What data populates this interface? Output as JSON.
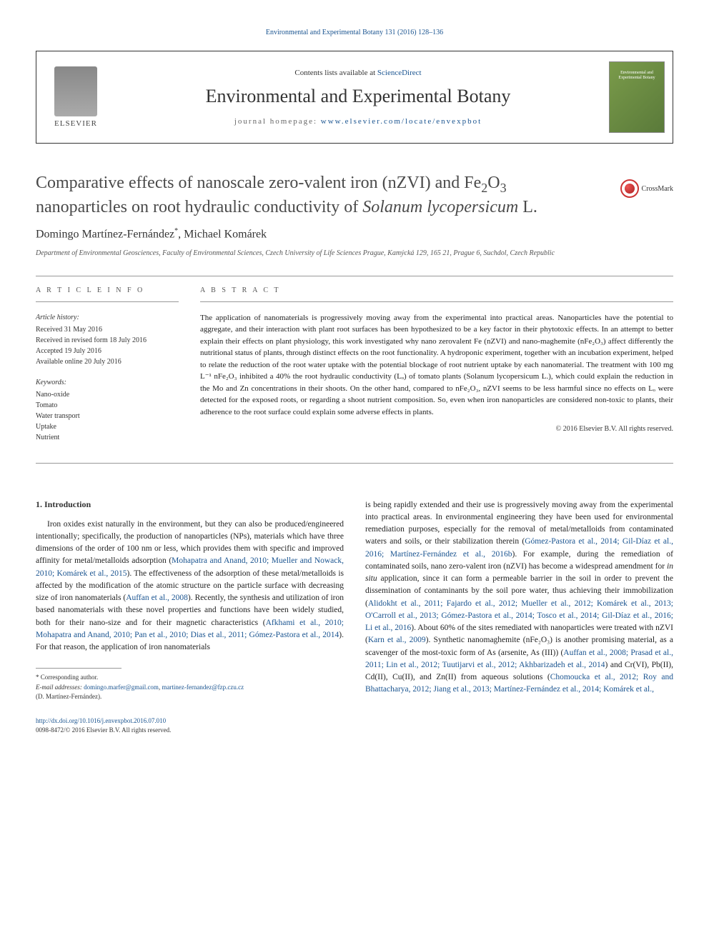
{
  "top_link": {
    "journal": "Environmental and Experimental Botany",
    "citation": "131 (2016) 128–136"
  },
  "header": {
    "contents_prefix": "Contents lists available at ",
    "contents_link": "ScienceDirect",
    "journal_title": "Environmental and Experimental Botany",
    "homepage_prefix": "journal homepage: ",
    "homepage_url": "www.elsevier.com/locate/envexpbot",
    "elsevier_label": "ELSEVIER",
    "cover_text": "Environmental and Experimental Botany"
  },
  "crossmark_label": "CrossMark",
  "article": {
    "title_pre": "Comparative effects of nanoscale zero-valent iron (nZVI) and Fe",
    "title_sub1": "2",
    "title_mid1": "O",
    "title_sub2": "3",
    "title_post": " nanoparticles on root hydraulic conductivity of ",
    "title_species": "Solanum lycopersicum",
    "title_end": " L.",
    "authors": "Domingo Martínez-Fernández",
    "author_mark": "*",
    "author2": ", Michael Komárek",
    "affiliation": "Department of Environmental Geosciences, Faculty of Environmental Sciences, Czech University of Life Sciences Prague, Kamýcká 129, 165 21, Prague 6, Suchdol, Czech Republic"
  },
  "article_info": {
    "heading": "A R T I C L E   I N F O",
    "history_label": "Article history:",
    "history": "Received 31 May 2016\nReceived in revised form 18 July 2016\nAccepted 19 July 2016\nAvailable online 20 July 2016",
    "keywords_label": "Keywords:",
    "keywords": "Nano-oxide\nTomato\nWater transport\nUptake\nNutrient"
  },
  "abstract": {
    "heading": "A B S T R A C T",
    "text": "The application of nanomaterials is progressively moving away from the experimental into practical areas. Nanoparticles have the potential to aggregate, and their interaction with plant root surfaces has been hypothesized to be a key factor in their phytotoxic effects. In an attempt to better explain their effects on plant physiology, this work investigated why nano zerovalent Fe (nZVI) and nano-maghemite (nFe₂O₃) affect differently the nutritional status of plants, through distinct effects on the root functionality. A hydroponic experiment, together with an incubation experiment, helped to relate the reduction of the root water uptake with the potential blockage of root nutrient uptake by each nanomaterial. The treatment with 100 mg L⁻¹ nFe₂O₃ inhibited a 40% the root hydraulic conductivity (Lₒ) of tomato plants (Solanum lycopersicum L.), which could explain the reduction in the Mo and Zn concentrations in their shoots. On the other hand, compared to nFe₂O₃, nZVI seems to be less harmful since no effects on Lₒ were detected for the exposed roots, or regarding a shoot nutrient composition. So, even when iron nanoparticles are considered non-toxic to plants, their adherence to the root surface could explain some adverse effects in plants.",
    "copyright": "© 2016 Elsevier B.V. All rights reserved."
  },
  "body": {
    "section_heading": "1. Introduction",
    "col1_p1": "Iron oxides exist naturally in the environment, but they can also be produced/engineered intentionally; specifically, the production of nanoparticles (NPs), materials which have three dimensions of the order of 100 nm or less, which provides them with specific and improved affinity for metal/metalloids adsorption (",
    "col1_ref1": "Mohapatra and Anand, 2010; Mueller and Nowack, 2010; Komárek et al., 2015",
    "col1_p2": "). The effectiveness of the adsorption of these metal/metalloids is affected by the modification of the atomic structure on the particle surface with decreasing size of iron nanomaterials (",
    "col1_ref2": "Auffan et al., 2008",
    "col1_p3": "). Recently, the synthesis and utilization of iron based nanomaterials with these novel properties and functions have been widely studied, both for their nano-size and for their magnetic characteristics (",
    "col1_ref3": "Afkhami et al., 2010; Mohapatra and Anand, 2010; Pan et al., 2010; Dias et al., 2011; Gómez-Pastora et al., 2014",
    "col1_p4": "). For that reason, the application of iron nanomaterials",
    "col2_p1": "is being rapidly extended and their use is progressively moving away from the experimental into practical areas. In environmental engineering they have been used for environmental remediation purposes, especially for the removal of metal/metalloids from contaminated waters and soils, or their stabilization therein (",
    "col2_ref1": "Gómez-Pastora et al., 2014; Gil-Díaz et al., 2016; Martínez-Fernández et al., 2016b",
    "col2_p2": "). For example, during the remediation of contaminated soils, nano zero-valent iron (nZVI) has become a widespread amendment for ",
    "col2_em1": "in situ",
    "col2_p3": " application, since it can form a permeable barrier in the soil in order to prevent the dissemination of contaminants by the soil pore water, thus achieving their immobilization (",
    "col2_ref2": "Alidokht et al., 2011; Fajardo et al., 2012; Mueller et al., 2012; Komárek et al., 2013; O'Carroll et al., 2013; Gómez-Pastora et al., 2014; Tosco et al., 2014; Gil-Díaz et al., 2016; Li et al., 2016",
    "col2_p4": "). About 60% of the sites remediated with nanoparticles were treated with nZVI (",
    "col2_ref3": "Karn et al., 2009",
    "col2_p5": "). Synthetic nanomaghemite (nFe₂O₃) is another promising material, as a scavenger of the most-toxic form of As (arsenite, As (III)) (",
    "col2_ref4": "Auffan et al., 2008; Prasad et al., 2011; Lin et al., 2012; Tuutijarvi et al., 2012; Akhbarizadeh et al., 2014",
    "col2_p6": ") and Cr(VI), Pb(II), Cd(II), Cu(II), and Zn(II) from aqueous solutions (",
    "col2_ref5": "Chomoucka et al., 2012; Roy and Bhattacharya, 2012; Jiang et al., 2013; Martínez-Fernández et al., 2014; Komárek et al.,"
  },
  "footnote": {
    "corr": "* Corresponding author.",
    "email_label": "E-mail addresses: ",
    "email1": "domingo.marfer@gmail.com",
    "email_sep": ", ",
    "email2": "martinez-fernandez@fzp.czu.cz",
    "name": "(D. Martínez-Fernández)."
  },
  "doi": {
    "url": "http://dx.doi.org/10.1016/j.envexpbot.2016.07.010",
    "issn": "0098-8472/© 2016 Elsevier B.V. All rights reserved."
  },
  "colors": {
    "link": "#1a5490",
    "text": "#333333",
    "ref": "#1a5490"
  }
}
